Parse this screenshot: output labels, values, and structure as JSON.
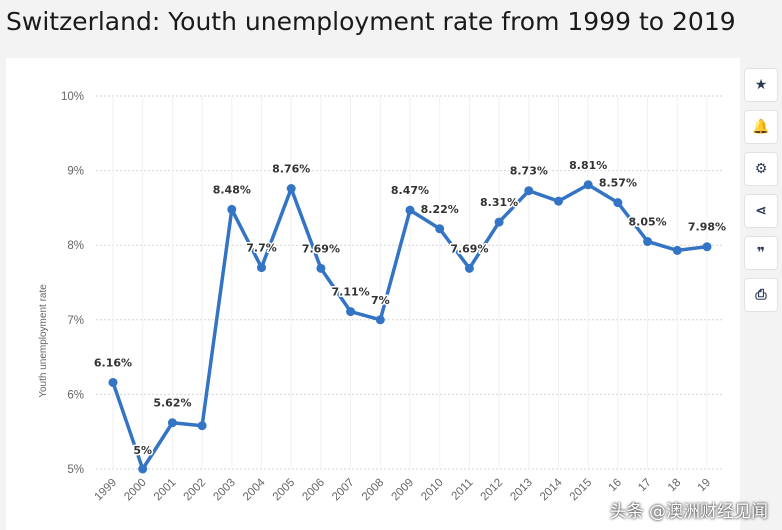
{
  "title": "Switzerland: Youth unemployment rate from 1999 to 2019",
  "toolbar": [
    {
      "name": "star-icon",
      "glyph": "★"
    },
    {
      "name": "bell-icon",
      "glyph": "🔔"
    },
    {
      "name": "gear-icon",
      "glyph": "⚙"
    },
    {
      "name": "share-icon",
      "glyph": "⋖"
    },
    {
      "name": "quote-icon",
      "glyph": "❞"
    },
    {
      "name": "print-icon",
      "glyph": "⎙"
    }
  ],
  "watermark": "头条 @澳洲财经见闻",
  "colors": {
    "line": "#3474c4",
    "grid": "#d5d5d5"
  },
  "chart_data": {
    "type": "line",
    "title": "",
    "ylabel": "Youth unemployment rate",
    "xlabel": "",
    "ylim": [
      5,
      10
    ],
    "yticks": [
      5,
      6,
      7,
      8,
      9,
      10
    ],
    "ytick_labels": [
      "5%",
      "6%",
      "7%",
      "8%",
      "9%",
      "10%"
    ],
    "grid": true,
    "categories": [
      "1999",
      "2000",
      "2001",
      "2002",
      "2003",
      "2004",
      "2005",
      "2006",
      "2007",
      "2008",
      "2009",
      "2010",
      "2011",
      "2012",
      "2013",
      "2014",
      "2015",
      "2016",
      "2017",
      "2018",
      "2019"
    ],
    "tick_labels": [
      "1999",
      "2000",
      "2001",
      "2002",
      "2003",
      "2004",
      "2005",
      "2006",
      "2007",
      "2008",
      "2009",
      "2010",
      "2011",
      "2012",
      "2013",
      "2014",
      "2015",
      "16",
      "17",
      "18",
      "19"
    ],
    "values": [
      6.16,
      5.0,
      5.62,
      5.58,
      8.48,
      7.7,
      8.76,
      7.69,
      7.11,
      7.0,
      8.47,
      8.22,
      7.69,
      8.31,
      8.73,
      8.59,
      8.81,
      8.57,
      8.05,
      7.93,
      7.98
    ],
    "data_labels": [
      "6.16%",
      "5%",
      "5.62%",
      "",
      "8.48%",
      "7.7%",
      "8.76%",
      "7.69%",
      "7.11%",
      "7%",
      "8.47%",
      "8.22%",
      "7.69%",
      "8.31%",
      "8.73%",
      "",
      "8.81%",
      "8.57%",
      "8.05%",
      "",
      "7.98%"
    ]
  }
}
